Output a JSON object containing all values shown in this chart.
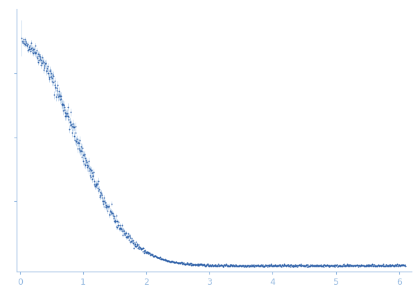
{
  "title": "",
  "xlabel": "",
  "ylabel": "",
  "xlim": [
    -0.05,
    6.2
  ],
  "point_color": "#2B5EA7",
  "error_color": "#93B8E0",
  "background_color": "#ffffff",
  "axis_color": "#93B8E0",
  "tick_color": "#93B8E0",
  "label_color": "#93B8E0",
  "point_size": 2.0,
  "x_ticks": [
    0,
    1,
    2,
    3,
    4,
    5,
    6
  ],
  "seed": 42,
  "n_points": 900,
  "q_max": 6.1,
  "q_min": 0.04,
  "I0": 1000,
  "Rg": 1.45,
  "noise_floor": 8.0,
  "noise_scale_high": 0.25
}
